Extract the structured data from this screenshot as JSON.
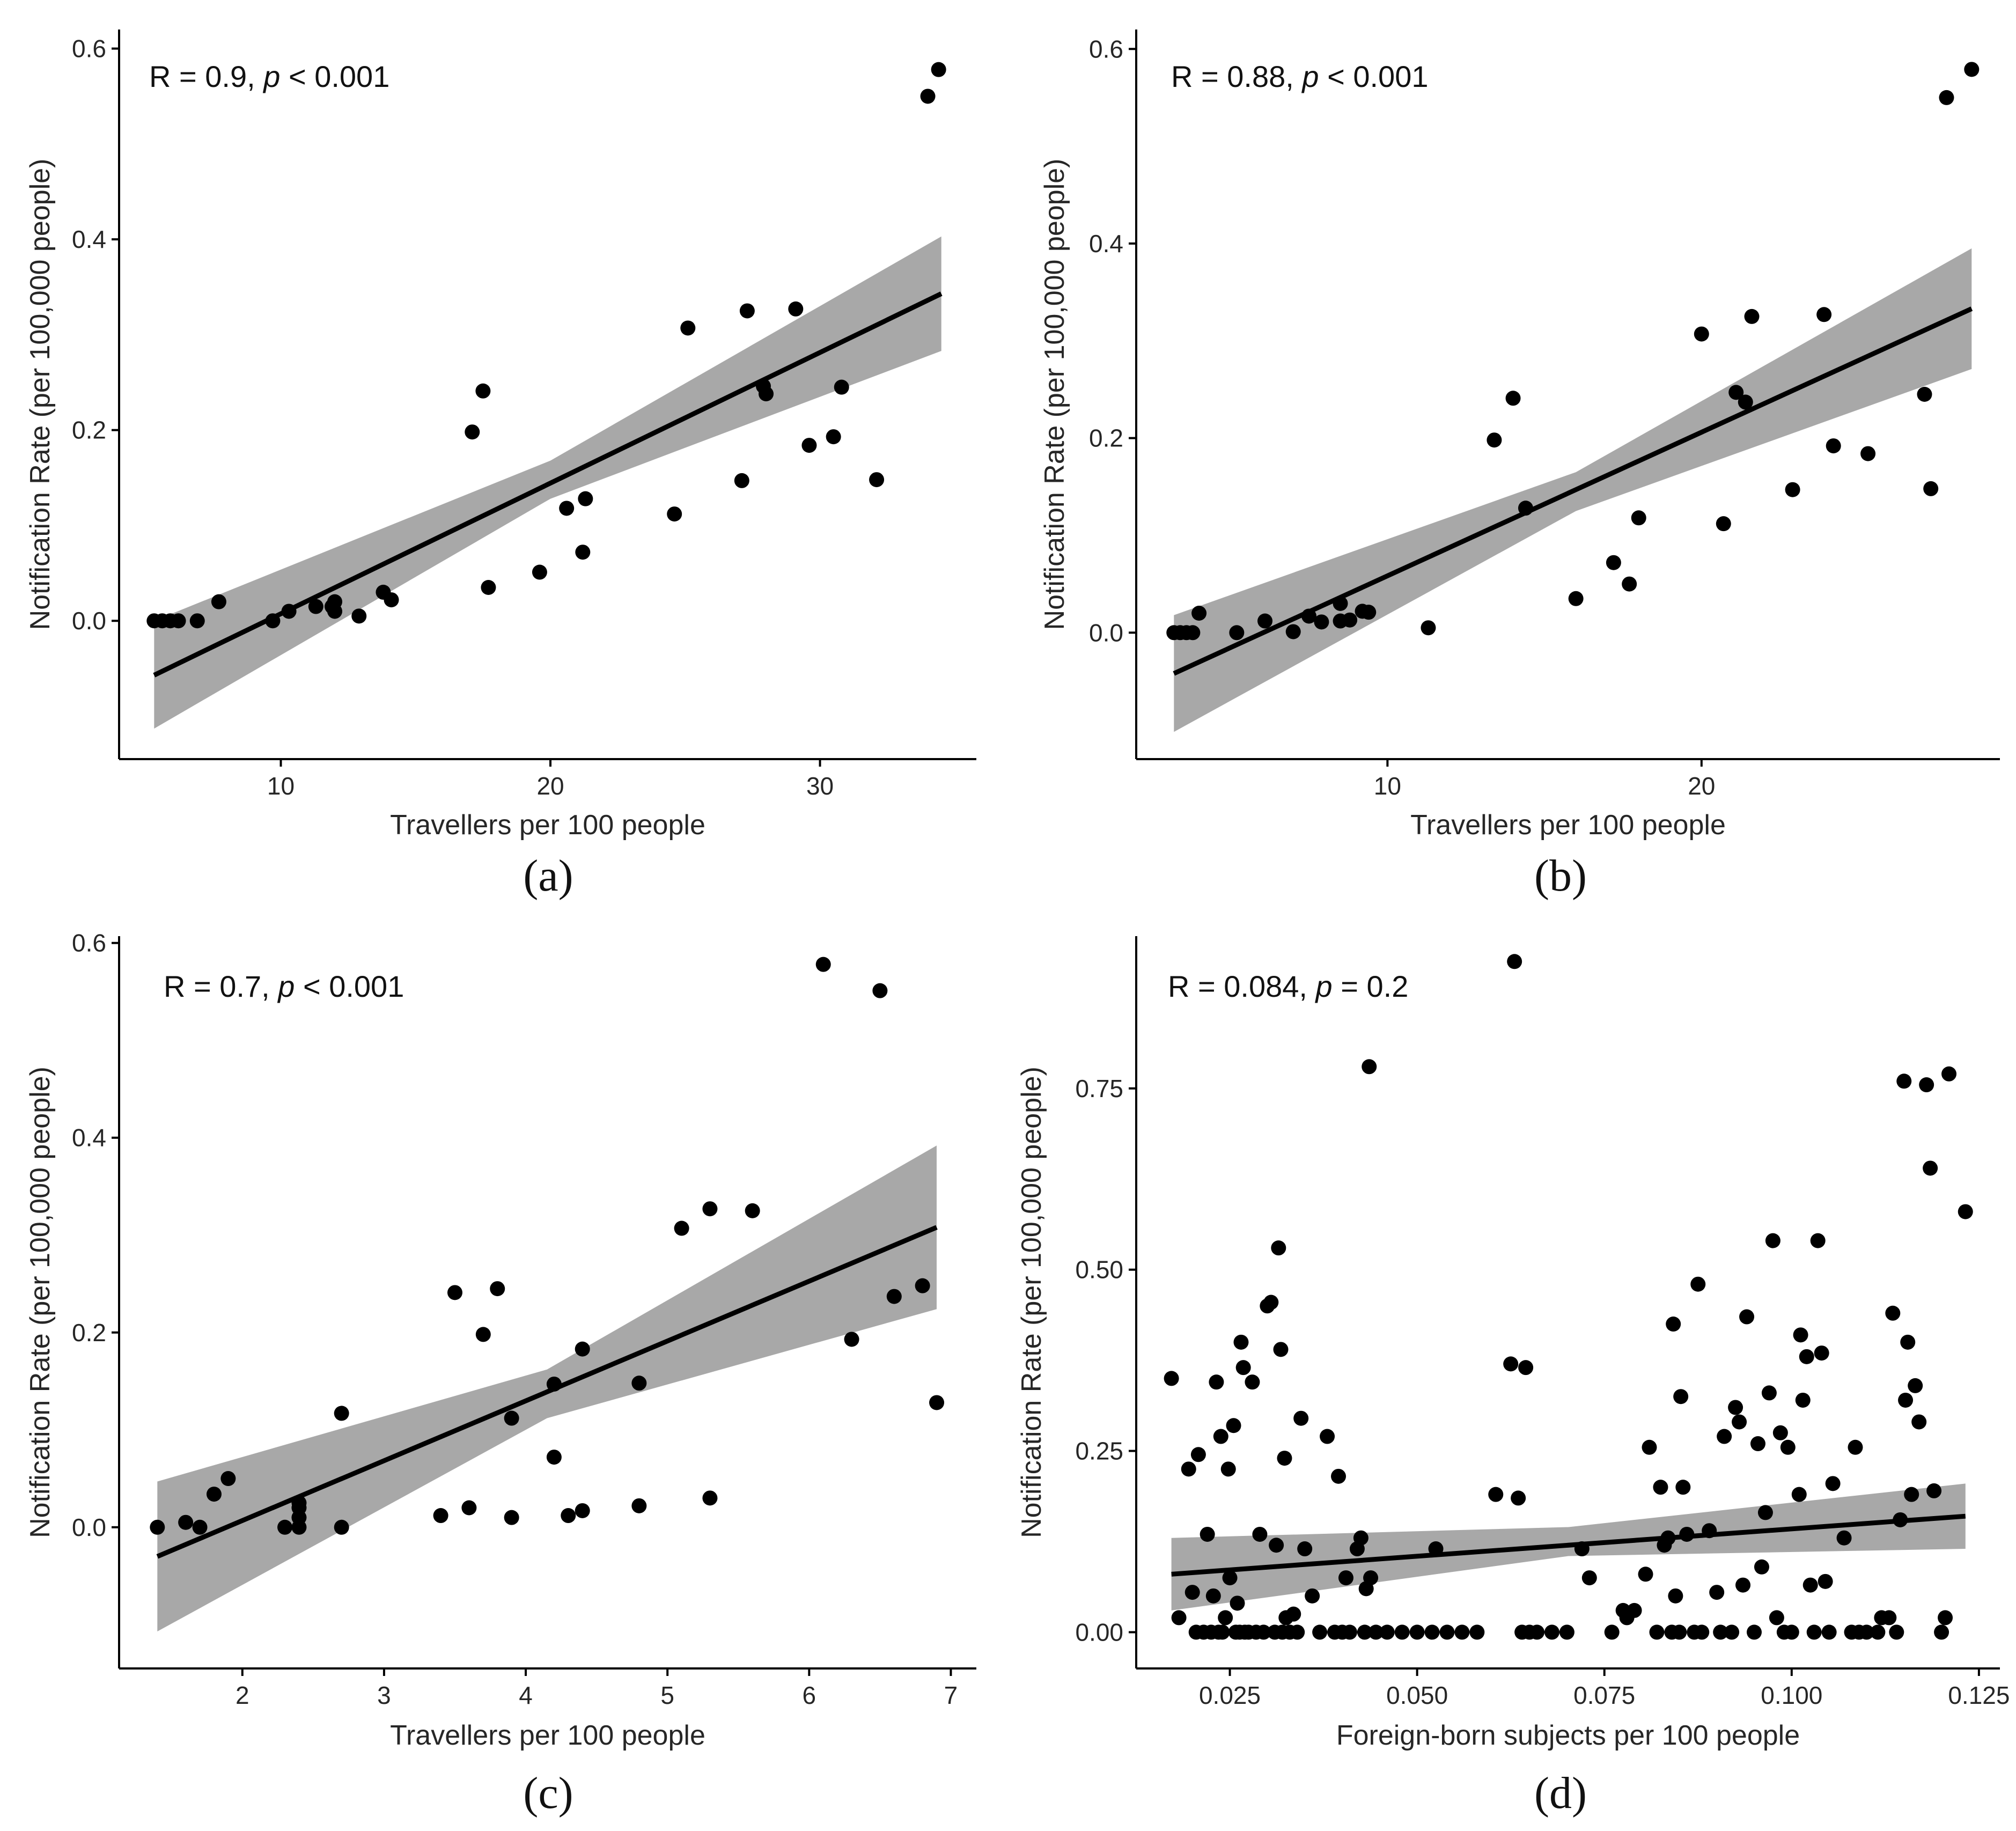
{
  "figure": {
    "colors": {
      "point": "#000000",
      "line": "#000000",
      "band": "#999999",
      "axis": "#000000",
      "text": "#262626"
    }
  },
  "chart_data": [
    {
      "type": "scatter",
      "panel_label": "(a)",
      "stat": {
        "r_text": "R = 0.9, ",
        "p_var": "p",
        "p_text": " < 0.001"
      },
      "xlabel": "Travellers per 100 people",
      "ylabel": "Notification Rate (per 100,000 people)",
      "xlim": [
        4.0,
        35.8
      ],
      "ylim": [
        -0.145,
        0.62
      ],
      "xticks": [
        10,
        20,
        30
      ],
      "xtick_labels": [
        "10",
        "20",
        "30"
      ],
      "yticks": [
        0.0,
        0.2,
        0.4,
        0.6
      ],
      "ytick_labels": [
        "0.0",
        "0.2",
        "0.4",
        "0.6"
      ],
      "points": [
        [
          5.3,
          0.0
        ],
        [
          5.6,
          0.0
        ],
        [
          5.9,
          0.0
        ],
        [
          6.2,
          0.0
        ],
        [
          6.9,
          0.0
        ],
        [
          7.7,
          0.02
        ],
        [
          9.7,
          0.0
        ],
        [
          10.3,
          0.01
        ],
        [
          11.3,
          0.015
        ],
        [
          11.9,
          0.015
        ],
        [
          12.0,
          0.02
        ],
        [
          12.0,
          0.01
        ],
        [
          12.9,
          0.005
        ],
        [
          13.8,
          0.03
        ],
        [
          14.1,
          0.022
        ],
        [
          17.1,
          0.198
        ],
        [
          17.5,
          0.241
        ],
        [
          17.7,
          0.035
        ],
        [
          19.6,
          0.051
        ],
        [
          20.6,
          0.118
        ],
        [
          21.3,
          0.128
        ],
        [
          21.2,
          0.072
        ],
        [
          24.6,
          0.112
        ],
        [
          25.1,
          0.307
        ],
        [
          27.1,
          0.147
        ],
        [
          27.3,
          0.325
        ],
        [
          27.9,
          0.246
        ],
        [
          28.0,
          0.238
        ],
        [
          29.1,
          0.327
        ],
        [
          29.6,
          0.184
        ],
        [
          30.5,
          0.193
        ],
        [
          30.8,
          0.245
        ],
        [
          32.1,
          0.148
        ],
        [
          34.0,
          0.55
        ],
        [
          34.4,
          0.578
        ]
      ],
      "fit": {
        "x": [
          5.3,
          34.5
        ],
        "y": [
          -0.057,
          0.343
        ],
        "band_x": [
          5.3,
          20.0,
          34.5
        ],
        "band_upper": [
          0.0,
          0.168,
          0.403
        ],
        "band_lower": [
          -0.113,
          0.128,
          0.283
        ]
      }
    },
    {
      "type": "scatter",
      "panel_label": "(b)",
      "stat": {
        "r_text": "R = 0.88, ",
        "p_var": "p",
        "p_text": " < 0.001"
      },
      "xlabel": "Travellers per 100 people",
      "ylabel": "Notification Rate (per 100,000 people)",
      "xlim": [
        2.0,
        29.5
      ],
      "ylim": [
        -0.13,
        0.62
      ],
      "xticks": [
        10,
        20
      ],
      "xtick_labels": [
        "10",
        "20"
      ],
      "yticks": [
        0.0,
        0.2,
        0.4,
        0.6
      ],
      "ytick_labels": [
        "0.0",
        "0.2",
        "0.4",
        "0.6"
      ],
      "points": [
        [
          3.2,
          0.0
        ],
        [
          3.4,
          0.0
        ],
        [
          3.6,
          0.0
        ],
        [
          3.8,
          0.0
        ],
        [
          4.0,
          0.02
        ],
        [
          5.2,
          0.0
        ],
        [
          6.1,
          0.012
        ],
        [
          7.0,
          0.001
        ],
        [
          7.5,
          0.017
        ],
        [
          7.9,
          0.011
        ],
        [
          8.5,
          0.03
        ],
        [
          8.5,
          0.012
        ],
        [
          8.8,
          0.013
        ],
        [
          9.2,
          0.022
        ],
        [
          9.4,
          0.021
        ],
        [
          11.3,
          0.005
        ],
        [
          13.4,
          0.198
        ],
        [
          14.0,
          0.241
        ],
        [
          14.4,
          0.128
        ],
        [
          16.0,
          0.035
        ],
        [
          17.2,
          0.072
        ],
        [
          17.7,
          0.05
        ],
        [
          18.0,
          0.118
        ],
        [
          20.0,
          0.307
        ],
        [
          20.7,
          0.112
        ],
        [
          21.1,
          0.247
        ],
        [
          21.4,
          0.237
        ],
        [
          21.6,
          0.325
        ],
        [
          22.9,
          0.147
        ],
        [
          23.9,
          0.327
        ],
        [
          24.2,
          0.192
        ],
        [
          25.3,
          0.184
        ],
        [
          27.1,
          0.245
        ],
        [
          27.3,
          0.148
        ],
        [
          27.8,
          0.55
        ],
        [
          28.6,
          0.579
        ]
      ],
      "fit": {
        "x": [
          3.2,
          28.6
        ],
        "y": [
          -0.042,
          0.333
        ],
        "band_x": [
          3.2,
          16.0,
          28.6
        ],
        "band_upper": [
          0.018,
          0.165,
          0.395
        ],
        "band_lower": [
          -0.102,
          0.125,
          0.271
        ]
      }
    },
    {
      "type": "scatter",
      "panel_label": "(c)",
      "stat": {
        "r_text": "R = 0.7, ",
        "p_var": "p",
        "p_text": " < 0.001"
      },
      "xlabel": "Travellers per 100 people",
      "ylabel": "Notification Rate (per 100,000 people)",
      "xlim": [
        1.13,
        7.18
      ],
      "ylim": [
        -0.145,
        0.607
      ],
      "xticks": [
        2,
        3,
        4,
        5,
        6,
        7
      ],
      "xtick_labels": [
        "2",
        "3",
        "4",
        "5",
        "6",
        "7"
      ],
      "yticks": [
        0.0,
        0.2,
        0.4,
        0.6
      ],
      "ytick_labels": [
        "0.0",
        "0.2",
        "0.4",
        "0.6"
      ],
      "points": [
        [
          1.4,
          0.0
        ],
        [
          1.6,
          0.005
        ],
        [
          1.7,
          0.0
        ],
        [
          1.8,
          0.034
        ],
        [
          1.9,
          0.05
        ],
        [
          2.3,
          0.0
        ],
        [
          2.4,
          0.0
        ],
        [
          2.4,
          0.01
        ],
        [
          2.4,
          0.02
        ],
        [
          2.4,
          0.025
        ],
        [
          2.7,
          0.0
        ],
        [
          2.7,
          0.117
        ],
        [
          3.4,
          0.012
        ],
        [
          3.5,
          0.241
        ],
        [
          3.6,
          0.02
        ],
        [
          3.7,
          0.198
        ],
        [
          3.8,
          0.245
        ],
        [
          3.9,
          0.112
        ],
        [
          3.9,
          0.01
        ],
        [
          4.2,
          0.147
        ],
        [
          4.2,
          0.072
        ],
        [
          4.3,
          0.012
        ],
        [
          4.4,
          0.017
        ],
        [
          4.4,
          0.183
        ],
        [
          4.8,
          0.022
        ],
        [
          4.8,
          0.148
        ],
        [
          5.1,
          0.307
        ],
        [
          5.3,
          0.327
        ],
        [
          5.3,
          0.03
        ],
        [
          5.6,
          0.325
        ],
        [
          6.1,
          0.578
        ],
        [
          6.3,
          0.193
        ],
        [
          6.5,
          0.551
        ],
        [
          6.6,
          0.237
        ],
        [
          6.8,
          0.248
        ],
        [
          6.9,
          0.128
        ]
      ],
      "fit": {
        "x": [
          1.4,
          6.9
        ],
        "y": [
          -0.03,
          0.308
        ],
        "band_x": [
          1.4,
          4.15,
          6.9
        ],
        "band_upper": [
          0.047,
          0.162,
          0.392
        ],
        "band_lower": [
          -0.107,
          0.112,
          0.224
        ]
      }
    },
    {
      "type": "scatter",
      "panel_label": "(d)",
      "stat": {
        "r_text": "R = 0.084, ",
        "p_var": "p",
        "p_text": " = 0.2"
      },
      "xlabel": "Foreign-born subjects per 100 people",
      "ylabel": "Notification Rate (per 100,000 people)",
      "xlim": [
        0.0125,
        0.1278
      ],
      "ylim": [
        -0.05,
        0.96
      ],
      "xticks": [
        0.025,
        0.05,
        0.075,
        0.1,
        0.125
      ],
      "xtick_labels": [
        "0.025",
        "0.050",
        "0.075",
        "0.100",
        "0.125"
      ],
      "yticks": [
        0.0,
        0.25,
        0.5,
        0.75
      ],
      "ytick_labels": [
        "0.00",
        "0.25",
        "0.50",
        "0.75"
      ],
      "points": [
        [
          0.0172,
          0.35
        ],
        [
          0.0182,
          0.02
        ],
        [
          0.0195,
          0.225
        ],
        [
          0.02,
          0.055
        ],
        [
          0.0205,
          0.0
        ],
        [
          0.0208,
          0.245
        ],
        [
          0.0215,
          0.0
        ],
        [
          0.022,
          0.135
        ],
        [
          0.0225,
          0.0
        ],
        [
          0.0228,
          0.05
        ],
        [
          0.0232,
          0.345
        ],
        [
          0.0235,
          0.0
        ],
        [
          0.0238,
          0.27
        ],
        [
          0.024,
          0.0
        ],
        [
          0.0244,
          0.02
        ],
        [
          0.0248,
          0.225
        ],
        [
          0.025,
          0.075
        ],
        [
          0.0255,
          0.285
        ],
        [
          0.0258,
          0.0
        ],
        [
          0.026,
          0.04
        ],
        [
          0.0263,
          0.0
        ],
        [
          0.0265,
          0.4
        ],
        [
          0.0268,
          0.365
        ],
        [
          0.027,
          0.0
        ],
        [
          0.0275,
          0.0
        ],
        [
          0.028,
          0.345
        ],
        [
          0.0285,
          0.0
        ],
        [
          0.029,
          0.135
        ],
        [
          0.0295,
          0.0
        ],
        [
          0.03,
          0.45
        ],
        [
          0.0305,
          0.455
        ],
        [
          0.031,
          0.0
        ],
        [
          0.0312,
          0.12
        ],
        [
          0.0315,
          0.53
        ],
        [
          0.0318,
          0.39
        ],
        [
          0.032,
          0.0
        ],
        [
          0.0323,
          0.24
        ],
        [
          0.0325,
          0.02
        ],
        [
          0.033,
          0.0
        ],
        [
          0.0335,
          0.025
        ],
        [
          0.034,
          0.0
        ],
        [
          0.0345,
          0.295
        ],
        [
          0.035,
          0.115
        ],
        [
          0.036,
          0.05
        ],
        [
          0.037,
          0.0
        ],
        [
          0.038,
          0.27
        ],
        [
          0.039,
          0.0
        ],
        [
          0.0395,
          0.215
        ],
        [
          0.04,
          0.0
        ],
        [
          0.0405,
          0.075
        ],
        [
          0.041,
          0.0
        ],
        [
          0.042,
          0.115
        ],
        [
          0.0425,
          0.13
        ],
        [
          0.043,
          0.0
        ],
        [
          0.0432,
          0.06
        ],
        [
          0.0436,
          0.78
        ],
        [
          0.0438,
          0.075
        ],
        [
          0.0445,
          0.0
        ],
        [
          0.046,
          0.0
        ],
        [
          0.048,
          0.0
        ],
        [
          0.05,
          0.0
        ],
        [
          0.052,
          0.0
        ],
        [
          0.0525,
          0.115
        ],
        [
          0.054,
          0.0
        ],
        [
          0.056,
          0.0
        ],
        [
          0.058,
          0.0
        ],
        [
          0.0605,
          0.19
        ],
        [
          0.0625,
          0.37
        ],
        [
          0.063,
          0.925
        ],
        [
          0.0635,
          0.185
        ],
        [
          0.064,
          0.0
        ],
        [
          0.0645,
          0.365
        ],
        [
          0.065,
          0.0
        ],
        [
          0.066,
          0.0
        ],
        [
          0.068,
          0.0
        ],
        [
          0.07,
          0.0
        ],
        [
          0.072,
          0.115
        ],
        [
          0.073,
          0.075
        ],
        [
          0.076,
          0.0
        ],
        [
          0.0775,
          0.03
        ],
        [
          0.078,
          0.02
        ],
        [
          0.079,
          0.03
        ],
        [
          0.0805,
          0.08
        ],
        [
          0.081,
          0.255
        ],
        [
          0.082,
          0.0
        ],
        [
          0.0825,
          0.2
        ],
        [
          0.083,
          0.12
        ],
        [
          0.0835,
          0.13
        ],
        [
          0.084,
          0.0
        ],
        [
          0.0842,
          0.425
        ],
        [
          0.0845,
          0.05
        ],
        [
          0.085,
          0.0
        ],
        [
          0.0852,
          0.325
        ],
        [
          0.0855,
          0.2
        ],
        [
          0.086,
          0.135
        ],
        [
          0.087,
          0.0
        ],
        [
          0.0875,
          0.48
        ],
        [
          0.088,
          0.0
        ],
        [
          0.089,
          0.14
        ],
        [
          0.09,
          0.055
        ],
        [
          0.0905,
          0.0
        ],
        [
          0.091,
          0.27
        ],
        [
          0.092,
          0.0
        ],
        [
          0.0925,
          0.31
        ],
        [
          0.093,
          0.29
        ],
        [
          0.0935,
          0.065
        ],
        [
          0.094,
          0.435
        ],
        [
          0.095,
          0.0
        ],
        [
          0.0955,
          0.26
        ],
        [
          0.096,
          0.09
        ],
        [
          0.0965,
          0.165
        ],
        [
          0.097,
          0.33
        ],
        [
          0.0975,
          0.54
        ],
        [
          0.098,
          0.02
        ],
        [
          0.0985,
          0.275
        ],
        [
          0.099,
          0.0
        ],
        [
          0.0995,
          0.255
        ],
        [
          0.1,
          0.0
        ],
        [
          0.101,
          0.19
        ],
        [
          0.1012,
          0.41
        ],
        [
          0.1015,
          0.32
        ],
        [
          0.102,
          0.38
        ],
        [
          0.1025,
          0.065
        ],
        [
          0.103,
          0.0
        ],
        [
          0.1035,
          0.54
        ],
        [
          0.104,
          0.385
        ],
        [
          0.1045,
          0.07
        ],
        [
          0.105,
          0.0
        ],
        [
          0.1055,
          0.205
        ],
        [
          0.107,
          0.13
        ],
        [
          0.108,
          0.0
        ],
        [
          0.1085,
          0.255
        ],
        [
          0.109,
          0.0
        ],
        [
          0.11,
          0.0
        ],
        [
          0.1115,
          0.0
        ],
        [
          0.112,
          0.02
        ],
        [
          0.113,
          0.02
        ],
        [
          0.1135,
          0.44
        ],
        [
          0.114,
          0.0
        ],
        [
          0.1145,
          0.155
        ],
        [
          0.115,
          0.76
        ],
        [
          0.1152,
          0.32
        ],
        [
          0.1155,
          0.4
        ],
        [
          0.116,
          0.19
        ],
        [
          0.1165,
          0.34
        ],
        [
          0.117,
          0.29
        ],
        [
          0.118,
          0.755
        ],
        [
          0.1185,
          0.64
        ],
        [
          0.119,
          0.195
        ],
        [
          0.12,
          0.0
        ],
        [
          0.1205,
          0.02
        ],
        [
          0.121,
          0.77
        ],
        [
          0.1232,
          0.58
        ]
      ],
      "fit": {
        "x": [
          0.0172,
          0.1232
        ],
        "y": [
          0.08,
          0.16
        ],
        "band_x": [
          0.0172,
          0.0702,
          0.1232
        ],
        "band_upper": [
          0.13,
          0.145,
          0.205
        ],
        "band_lower": [
          0.03,
          0.105,
          0.115
        ]
      }
    }
  ]
}
